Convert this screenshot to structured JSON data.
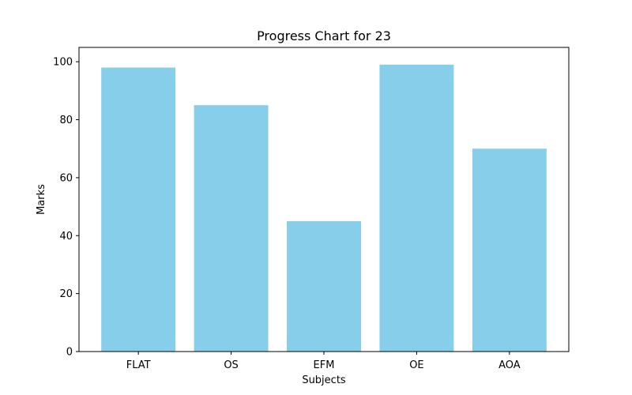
{
  "chart_data": {
    "type": "bar",
    "title": "Progress Chart for 23",
    "xlabel": "Subjects",
    "ylabel": "Marks",
    "categories": [
      "FLAT",
      "OS",
      "EFM",
      "OE",
      "AOA"
    ],
    "values": [
      98,
      85,
      45,
      99,
      70
    ],
    "ylim": [
      0,
      104.95
    ],
    "yticks": [
      0,
      20,
      40,
      60,
      80,
      100
    ],
    "grid": false,
    "bar_color": "#87ceeb"
  }
}
